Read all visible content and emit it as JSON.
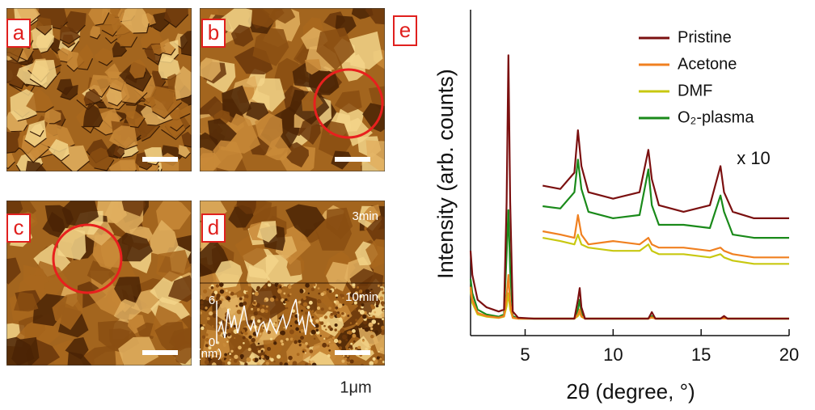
{
  "panels": [
    {
      "label": "a"
    },
    {
      "label": "b"
    },
    {
      "label": "c"
    },
    {
      "label": "d",
      "top_time": "3min",
      "bottom_time": "10min",
      "inset": {
        "ymax_label": "6",
        "ymin_label": "0",
        "unit": "(nm)"
      }
    }
  ],
  "scale_bar": "1μm",
  "chart_data": {
    "type": "line",
    "label": "e",
    "x_label": "2θ (degree, °)",
    "y_label": "Intensity (arb. counts)",
    "xlim": [
      1.9,
      20
    ],
    "ylim": [
      0,
      100
    ],
    "xticks": [
      5,
      10,
      15,
      20
    ],
    "legend": "upper right",
    "x": [
      1.9,
      2.0,
      2.3,
      2.8,
      3.5,
      3.8,
      3.95,
      4.05,
      4.15,
      4.3,
      4.6,
      5.5,
      7.8,
      8.0,
      8.1,
      8.2,
      8.4,
      12.0,
      12.2,
      12.4,
      16.1,
      16.3,
      16.5,
      20
    ],
    "series": [
      {
        "name": "Pristine",
        "color": "#7b1010",
        "values": [
          26,
          18.6,
          11,
          8.7,
          7.4,
          8,
          41,
          86,
          41,
          7.4,
          5.5,
          5.2,
          5.2,
          11,
          14.6,
          8.7,
          5.2,
          5.2,
          7.2,
          5.2,
          5.2,
          6,
          5.2,
          5.2
        ]
      },
      {
        "name": "Acetone",
        "color": "#f08020",
        "values": [
          15,
          11,
          7,
          6,
          5.5,
          6,
          12,
          18.6,
          10,
          5.5,
          5.2,
          5.2,
          5.2,
          6.5,
          8,
          6,
          5.2,
          5.2,
          5.6,
          5.2,
          5.2,
          5.3,
          5.2,
          5.2
        ]
      },
      {
        "name": "DMF",
        "color": "#c8c810",
        "values": [
          14,
          10,
          6.5,
          5.8,
          5.4,
          5.8,
          9,
          13,
          8,
          5.4,
          5.2,
          5.2,
          5.2,
          6,
          7,
          5.8,
          5.2,
          5.2,
          5.5,
          5.2,
          5.2,
          5.3,
          5.2,
          5.2
        ]
      },
      {
        "name": "O₂-plasma",
        "color": "#1a8a1a",
        "values": [
          17.4,
          13,
          8,
          6.5,
          5.8,
          6.5,
          25,
          38.5,
          20,
          6,
          5.2,
          5.2,
          5.2,
          8,
          11,
          7,
          5.2,
          5.2,
          6,
          5.2,
          5.2,
          5.5,
          5.2,
          5.2
        ]
      }
    ],
    "zoom": {
      "label": "x 10",
      "x": [
        6,
        7,
        7.8,
        8.0,
        8.2,
        8.6,
        10,
        11.5,
        12.0,
        12.2,
        12.6,
        14,
        15.5,
        16.1,
        16.3,
        16.8,
        18,
        20
      ],
      "series": [
        {
          "values": [
            46,
            45,
            50,
            63,
            52,
            44,
            42,
            44,
            57,
            48,
            40,
            38,
            40,
            52,
            44,
            38,
            36,
            36
          ]
        },
        {
          "values": [
            32,
            31,
            30,
            37,
            31,
            28,
            29,
            28,
            30,
            28,
            27,
            27,
            26,
            27,
            26,
            25,
            24,
            24
          ]
        },
        {
          "values": [
            30,
            29,
            28,
            31,
            28,
            27,
            26,
            26,
            28,
            26,
            25,
            25,
            24,
            25,
            24,
            23,
            22,
            22
          ]
        },
        {
          "values": [
            39.7,
            39,
            44,
            54,
            45,
            38,
            36,
            37,
            51,
            40,
            34,
            34,
            33,
            43,
            38,
            31,
            30,
            30
          ]
        }
      ]
    }
  }
}
